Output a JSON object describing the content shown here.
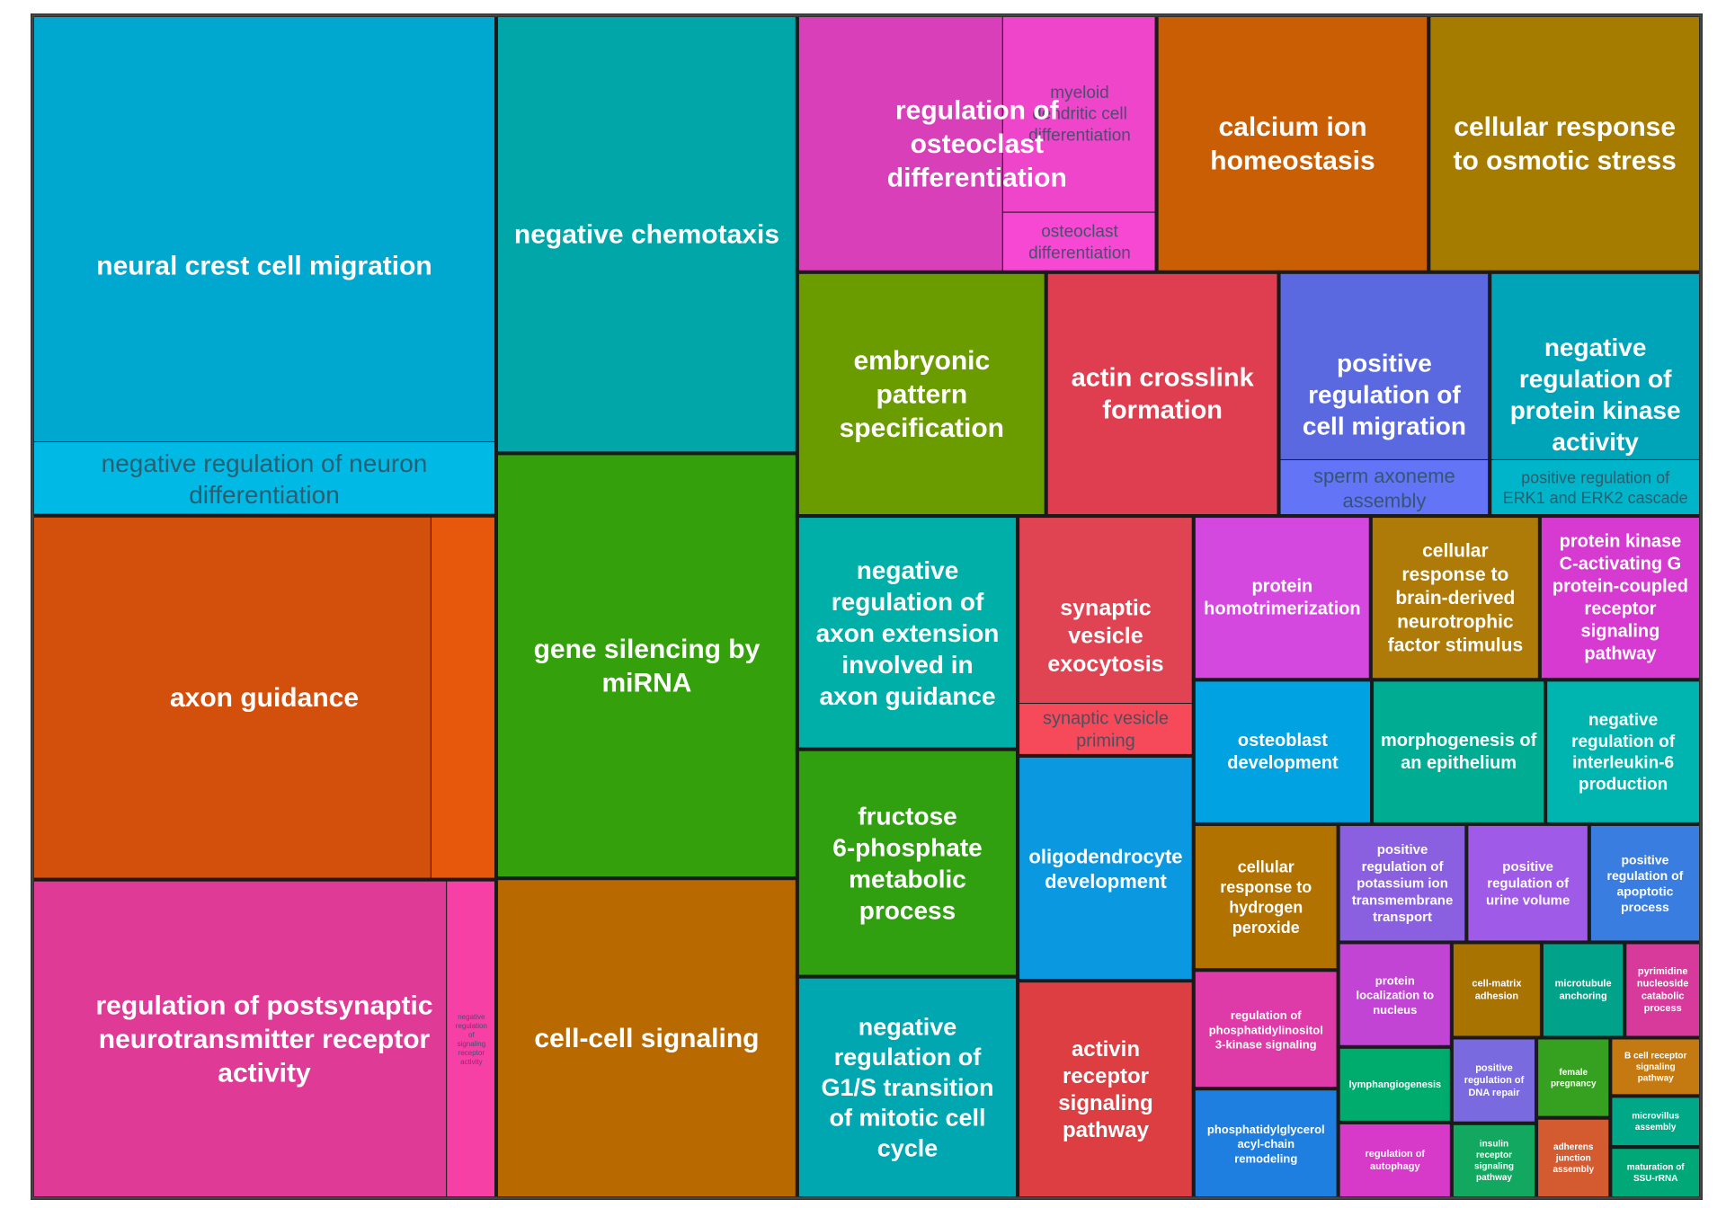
{
  "chart_data": {
    "type": "treemap",
    "title": "",
    "groups": [
      {
        "name": "neural crest cell migration",
        "color": "#00a8d0",
        "children": [
          {
            "name": "neural crest cell migration",
            "value": 1500
          },
          {
            "name": "negative regulation of neuron differentiation",
            "value": 260
          }
        ]
      },
      {
        "name": "axon guidance",
        "color": "#d2500c",
        "children": [
          {
            "name": "axon guidance",
            "value": 1100
          },
          {
            "name": "",
            "value": 180
          }
        ]
      },
      {
        "name": "regulation of postsynaptic neurotransmitter receptor activity",
        "color": "#e03a97",
        "children": [
          {
            "name": "regulation of postsynaptic neurotransmitter receptor activity",
            "value": 1000
          },
          {
            "name": "negative regulation of signaling receptor activity",
            "value": 120
          }
        ]
      },
      {
        "name": "negative chemotaxis",
        "color": "#00a6a8",
        "children": [
          {
            "name": "negative chemotaxis",
            "value": 1000
          }
        ]
      },
      {
        "name": "gene silencing by miRNA",
        "color": "#34a00c",
        "children": [
          {
            "name": "gene silencing by miRNA",
            "value": 970
          }
        ]
      },
      {
        "name": "regulation of osteoclast differentiation",
        "color": "#d83fb8",
        "children": [
          {
            "name": "regulation of osteoclast differentiation",
            "value": 400
          },
          {
            "name": "myeloid dendritic cell differentiation",
            "value": 230
          },
          {
            "name": "osteoclast differentiation",
            "value": 70
          }
        ]
      },
      {
        "name": "cell-cell signaling",
        "color": "#b86a00",
        "children": [
          {
            "name": "cell-cell signaling",
            "value": 730
          }
        ]
      },
      {
        "name": "calcium ion homeostasis",
        "color": "#c95e04",
        "children": [
          {
            "name": "calcium ion homeostasis",
            "value": 530
          }
        ]
      },
      {
        "name": "cellular response to osmotic stress",
        "color": "#a57b00",
        "children": [
          {
            "name": "cellular response to osmotic stress",
            "value": 530
          }
        ]
      },
      {
        "name": "embryonic pattern specification",
        "color": "#6a9c00",
        "children": [
          {
            "name": "embryonic pattern specification",
            "value": 460
          }
        ]
      },
      {
        "name": "positive regulation of cell migration",
        "color": "#5b69e0",
        "children": [
          {
            "name": "positive regulation of cell migration",
            "value": 300
          },
          {
            "name": "sperm axoneme assembly",
            "value": 90
          }
        ]
      },
      {
        "name": "actin crosslink formation",
        "color": "#de3e4f",
        "children": [
          {
            "name": "actin crosslink formation",
            "value": 430
          }
        ]
      },
      {
        "name": "negative regulation of protein kinase activity",
        "color": "#00a4b8",
        "children": [
          {
            "name": "negative regulation of protein kinase activity",
            "value": 300
          },
          {
            "name": "positive regulation of ERK1 and ERK2 cascade",
            "value": 90
          }
        ]
      },
      {
        "name": "negative regulation of axon extension involved in axon guidance",
        "color": "#00b0a8",
        "children": [
          {
            "name": "negative regulation of axon extension involved in axon guidance",
            "value": 390
          }
        ]
      },
      {
        "name": "fructose 6-phosphate metabolic process",
        "color": "#30a010",
        "children": [
          {
            "name": "fructose 6-phosphate metabolic process",
            "value": 380
          }
        ]
      },
      {
        "name": "negative regulation of G1/S transition of mitotic cell cycle",
        "color": "#00a7b0",
        "children": [
          {
            "name": "negative regulation of G1/S transition of mitotic cell cycle",
            "value": 370
          }
        ]
      },
      {
        "name": "synaptic vesicle exocytosis",
        "color": "#e04352",
        "children": [
          {
            "name": "synaptic vesicle exocytosis",
            "value": 250
          },
          {
            "name": "synaptic vesicle priming",
            "value": 70
          }
        ]
      },
      {
        "name": "oligodendrocyte development",
        "color": "#0a98e0",
        "children": [
          {
            "name": "oligodendrocyte development",
            "value": 300
          }
        ]
      },
      {
        "name": "activin receptor signaling pathway",
        "color": "#dc3e42",
        "children": [
          {
            "name": "activin receptor signaling pathway",
            "value": 290
          }
        ]
      },
      {
        "name": "protein homotrimerization",
        "color": "#d448e0",
        "children": [
          {
            "name": "protein homotrimerization",
            "value": 220
          }
        ]
      },
      {
        "name": "cellular response to brain-derived neurotrophic factor stimulus",
        "color": "#ae7a08",
        "children": [
          {
            "name": "cellular response to brain-derived neurotrophic factor stimulus",
            "value": 210
          }
        ]
      },
      {
        "name": "protein kinase C-activating G protein-coupled receptor signaling pathway",
        "color": "#d63ad0",
        "children": [
          {
            "name": "protein kinase C-activating G protein-coupled receptor signaling pathway",
            "value": 200
          }
        ]
      },
      {
        "name": "osteoblast development",
        "color": "#00a2e2",
        "children": [
          {
            "name": "osteoblast development",
            "value": 195
          }
        ]
      },
      {
        "name": "cellular response to hydrogen peroxide",
        "color": "#b27200",
        "children": [
          {
            "name": "cellular response to hydrogen peroxide",
            "value": 160
          }
        ]
      },
      {
        "name": "morphogenesis of an epithelium",
        "color": "#00ad92",
        "children": [
          {
            "name": "morphogenesis of an epithelium",
            "value": 190
          }
        ]
      },
      {
        "name": "negative regulation of interleukin-6 production",
        "color": "#00b4b0",
        "children": [
          {
            "name": "negative regulation of interleukin-6 production",
            "value": 170
          }
        ]
      },
      {
        "name": "regulation of phosphatidylinositol 3-kinase signaling",
        "color": "#de3aa8",
        "children": [
          {
            "name": "regulation of phosphatidylinositol 3-kinase signaling",
            "value": 130
          }
        ]
      },
      {
        "name": "phosphatidylglycerol acyl-chain remodeling",
        "color": "#1f7fe0",
        "children": [
          {
            "name": "phosphatidylglycerol acyl-chain remodeling",
            "value": 120
          }
        ]
      },
      {
        "name": "positive regulation of potassium ion transmembrane transport",
        "color": "#8a5fe0",
        "children": [
          {
            "name": "positive regulation of potassium ion transmembrane transport",
            "value": 115
          }
        ]
      },
      {
        "name": "positive regulation of urine volume",
        "color": "#a05ae8",
        "children": [
          {
            "name": "positive regulation of urine volume",
            "value": 110
          }
        ]
      },
      {
        "name": "positive regulation of apoptotic process",
        "color": "#3a7de0",
        "children": [
          {
            "name": "positive regulation of apoptotic process",
            "value": 100
          }
        ]
      },
      {
        "name": "protein localization to nucleus",
        "color": "#c244d4",
        "children": [
          {
            "name": "protein localization to nucleus",
            "value": 90
          }
        ]
      },
      {
        "name": "lymphangiogenesis",
        "color": "#00ab6e",
        "children": [
          {
            "name": "lymphangiogenesis",
            "value": 65
          }
        ]
      },
      {
        "name": "regulation of autophagy",
        "color": "#d73ac8",
        "children": [
          {
            "name": "regulation of autophagy",
            "value": 65
          }
        ]
      },
      {
        "name": "cell-matrix adhesion",
        "color": "#a87300",
        "children": [
          {
            "name": "cell-matrix adhesion",
            "value": 65
          }
        ]
      },
      {
        "name": "microtubule anchoring",
        "color": "#00a28a",
        "children": [
          {
            "name": "microtubule anchoring",
            "value": 60
          }
        ]
      },
      {
        "name": "pyrimidine nucleoside catabolic process",
        "color": "#d83a9c",
        "children": [
          {
            "name": "pyrimidine nucleoside catabolic process",
            "value": 55
          }
        ]
      },
      {
        "name": "positive regulation of DNA repair",
        "color": "#7a6ae0",
        "children": [
          {
            "name": "positive regulation of DNA repair",
            "value": 55
          }
        ]
      },
      {
        "name": "female pregnancy",
        "color": "#36a020",
        "children": [
          {
            "name": "female pregnancy",
            "value": 45
          }
        ]
      },
      {
        "name": "insulin receptor signaling pathway",
        "color": "#12a860",
        "children": [
          {
            "name": "insulin receptor signaling pathway",
            "value": 48
          }
        ]
      },
      {
        "name": "B cell receptor signaling pathway",
        "color": "#c47a10",
        "children": [
          {
            "name": "B cell receptor signaling pathway",
            "value": 40
          }
        ]
      },
      {
        "name": "adherens junction assembly",
        "color": "#d45a30",
        "children": [
          {
            "name": "adherens junction assembly",
            "value": 45
          }
        ]
      },
      {
        "name": "microvillus assembly",
        "color": "#00a888",
        "children": [
          {
            "name": "microvillus assembly",
            "value": 35
          }
        ]
      },
      {
        "name": "maturation of SSU-rRNA",
        "color": "#00a878",
        "children": [
          {
            "name": "maturation of SSU-rRNA",
            "value": 35
          }
        ]
      }
    ]
  }
}
